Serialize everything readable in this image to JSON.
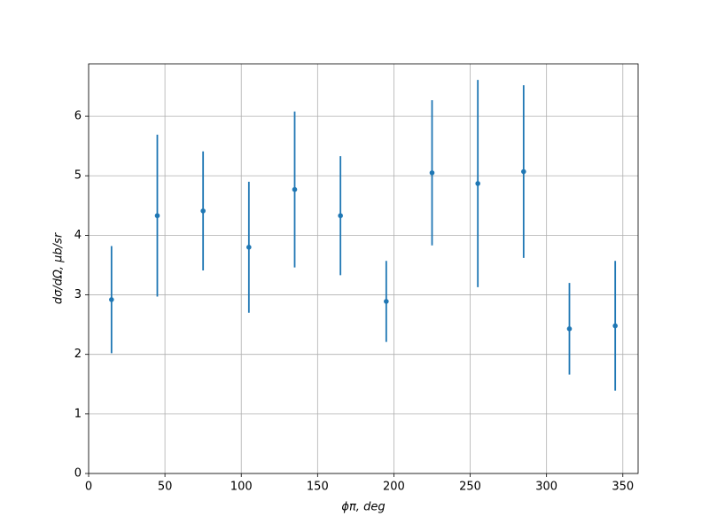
{
  "chart_data": {
    "type": "errorbar",
    "xlabel": "ϕπ, deg",
    "ylabel": "dσ/dΩ, μb/sr",
    "x": [
      15,
      45,
      75,
      105,
      135,
      165,
      195,
      225,
      255,
      285,
      315,
      345
    ],
    "series": [
      {
        "color": "#1f77b4",
        "values": [
          2.92,
          4.33,
          4.41,
          3.8,
          4.77,
          4.33,
          2.89,
          5.05,
          4.87,
          5.07,
          2.43,
          2.48
        ],
        "errors": [
          0.9,
          1.36,
          1.0,
          1.1,
          1.31,
          1.0,
          0.68,
          1.22,
          1.74,
          1.45,
          0.77,
          1.09
        ]
      }
    ],
    "xlim": [
      0,
      360
    ],
    "ylim": [
      0,
      6.88
    ],
    "xticks": [
      0,
      50,
      100,
      150,
      200,
      250,
      300,
      350
    ],
    "yticks": [
      0,
      1,
      2,
      3,
      4,
      5,
      6
    ],
    "grid": true
  }
}
